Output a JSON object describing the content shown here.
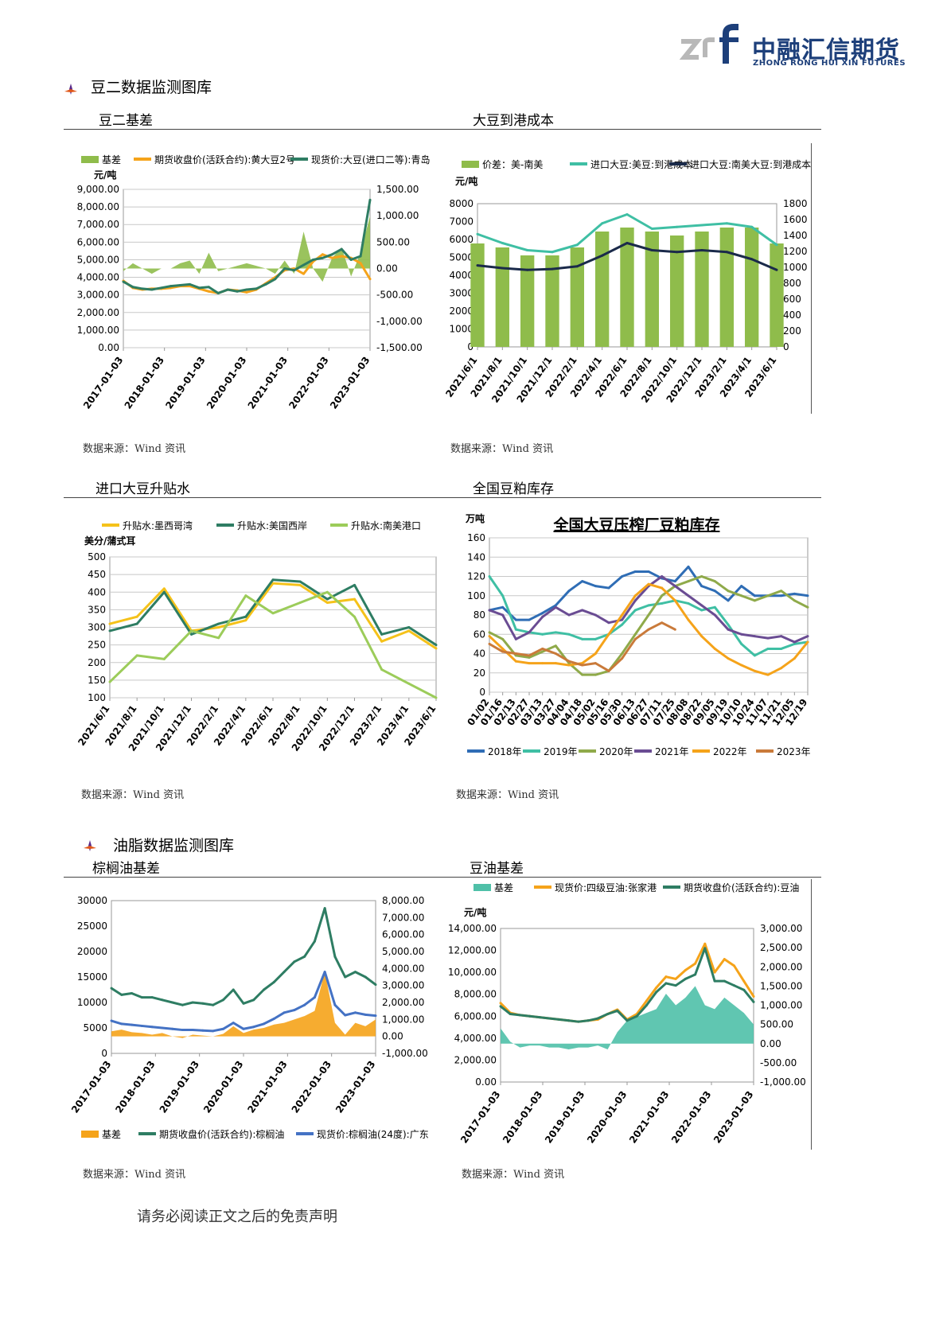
{
  "brand": {
    "name_cn": "中融汇信期货",
    "name_en": "ZHONG RONG HUI XIN FUTURES",
    "logo_mark": "zrf"
  },
  "sections": {
    "soy2": "豆二数据监测图库",
    "oil": "油脂数据监测图库"
  },
  "footer": "请务必阅读正文之后的免责声明",
  "chart_data": [
    {
      "id": "c1",
      "type": "line",
      "title": "豆二基差",
      "source": "数据来源：Wind 资讯",
      "ylabel_left": "元/吨",
      "legend": [
        "基差",
        "期货收盘价(活跃合约):黄大豆2号",
        "现货价:大豆(进口二等):青岛"
      ],
      "colors": [
        "#8fbc4b",
        "#f5a31a",
        "#2e7d63"
      ],
      "ylim_left": [
        0,
        9000
      ],
      "ylim_right": [
        -1500,
        1500
      ],
      "yticks_left": [
        "9,000.00",
        "8,000.00",
        "7,000.00",
        "6,000.00",
        "5,000.00",
        "4,000.00",
        "3,000.00",
        "2,000.00",
        "1,000.00",
        "0.00"
      ],
      "yticks_right": [
        "1,500.00",
        "1,000.00",
        "500.00",
        "0.00",
        "-500.00",
        "-1,000.00",
        "-1,500.00"
      ],
      "xticks": [
        "2017-01-03",
        "2018-01-03",
        "2019-01-03",
        "2020-01-03",
        "2021-01-03",
        "2022-01-03",
        "2023-01-03"
      ],
      "x": [
        "2017-01",
        "2017-04",
        "2017-07",
        "2017-10",
        "2018-01",
        "2018-04",
        "2018-07",
        "2018-10",
        "2019-01",
        "2019-04",
        "2019-07",
        "2019-10",
        "2020-01",
        "2020-04",
        "2020-07",
        "2020-10",
        "2021-01",
        "2021-04",
        "2021-07",
        "2021-10",
        "2022-01",
        "2022-04",
        "2022-07",
        "2022-10",
        "2023-01",
        "2023-04",
        "2023-06"
      ],
      "series": [
        {
          "name": "基差",
          "axis": "right",
          "values": [
            -50,
            100,
            0,
            -100,
            0,
            0,
            100,
            150,
            -100,
            300,
            -50,
            0,
            50,
            100,
            50,
            0,
            -100,
            150,
            -100,
            700,
            0,
            -250,
            200,
            400,
            -150,
            300,
            1000
          ]
        },
        {
          "name": "期货收盘价(活跃合约):黄大豆2号",
          "axis": "left",
          "values": [
            3800,
            3400,
            3300,
            3350,
            3350,
            3400,
            3500,
            3500,
            3350,
            3200,
            3100,
            3300,
            3250,
            3150,
            3300,
            3650,
            4000,
            4400,
            4500,
            4200,
            4900,
            5300,
            5100,
            5200,
            5100,
            4800,
            3900
          ]
        },
        {
          "name": "现货价:大豆(进口二等):青岛",
          "axis": "left",
          "values": [
            3750,
            3450,
            3350,
            3300,
            3400,
            3500,
            3550,
            3600,
            3400,
            3450,
            3100,
            3300,
            3200,
            3300,
            3350,
            3600,
            3900,
            4500,
            4400,
            4700,
            5000,
            5100,
            5300,
            5600,
            5000,
            5200,
            8400
          ]
        }
      ]
    },
    {
      "id": "c2",
      "type": "bar",
      "title": "大豆到港成本",
      "source": "数据来源：Wind 资讯",
      "ylabel_left": "元/吨",
      "legend": [
        "价差：美-南美",
        "进口大豆:美豆:到港成本",
        "进口大豆:南美大豆:到港成本"
      ],
      "colors": [
        "#8fbc4b",
        "#3fbfa4",
        "#1a2a4a"
      ],
      "ylim_left": [
        0,
        8000
      ],
      "ylim_right": [
        0,
        1800
      ],
      "yticks_left": [
        "8000",
        "7000",
        "6000",
        "5000",
        "4000",
        "3000",
        "2000",
        "1000",
        "0"
      ],
      "yticks_right": [
        "1800",
        "1600",
        "1400",
        "1200",
        "1000",
        "800",
        "600",
        "400",
        "200",
        "0"
      ],
      "xticks": [
        "2021/6/1",
        "2021/8/1",
        "2021/10/1",
        "2021/12/1",
        "2022/2/1",
        "2022/4/1",
        "2022/6/1",
        "2022/8/1",
        "2022/10/1",
        "2022/12/1",
        "2023/2/1",
        "2023/4/1",
        "2023/6/1"
      ],
      "x": [
        "2021/6",
        "2021/8",
        "2021/10",
        "2021/12",
        "2022/2",
        "2022/4",
        "2022/6",
        "2022/8",
        "2022/10",
        "2022/12",
        "2023/2",
        "2023/4",
        "2023/6"
      ],
      "series": [
        {
          "name": "价差：美-南美",
          "axis": "right",
          "values": [
            1300,
            1250,
            1150,
            1150,
            1250,
            1450,
            1500,
            1450,
            1400,
            1450,
            1500,
            1500,
            1300
          ]
        },
        {
          "name": "进口大豆:美豆:到港成本",
          "axis": "left",
          "values": [
            6300,
            5800,
            5400,
            5300,
            5700,
            6900,
            7400,
            6600,
            6700,
            6800,
            6900,
            6700,
            5700
          ]
        },
        {
          "name": "进口大豆:南美大豆:到港成本",
          "axis": "left",
          "values": [
            4550,
            4400,
            4300,
            4350,
            4500,
            5100,
            5800,
            5400,
            5300,
            5400,
            5300,
            4900,
            4300
          ]
        }
      ]
    },
    {
      "id": "c3",
      "type": "line",
      "title": "进口大豆升贴水",
      "source": "数据来源：Wind 资讯",
      "ylabel_left": "美分/蒲式耳",
      "legend": [
        "升贴水:墨西哥湾",
        "升贴水:美国西岸",
        "升贴水:南美港口"
      ],
      "colors": [
        "#f5c21a",
        "#2e7d63",
        "#9ccc5a"
      ],
      "ylim_left": [
        100,
        500
      ],
      "yticks_left": [
        "500",
        "450",
        "400",
        "350",
        "300",
        "250",
        "200",
        "150",
        "100"
      ],
      "xticks": [
        "2021/6/1",
        "2021/8/1",
        "2021/10/1",
        "2021/12/1",
        "2022/2/1",
        "2022/4/1",
        "2022/6/1",
        "2022/8/1",
        "2022/10/1",
        "2022/12/1",
        "2023/2/1",
        "2023/4/1",
        "2023/6/1"
      ],
      "x": [
        "2021/6",
        "2021/8",
        "2021/10",
        "2021/12",
        "2022/2",
        "2022/4",
        "2022/6",
        "2022/8",
        "2022/10",
        "2022/12",
        "2023/2",
        "2023/4",
        "2023/6"
      ],
      "series": [
        {
          "name": "升贴水:墨西哥湾",
          "values": [
            310,
            330,
            410,
            290,
            300,
            320,
            425,
            420,
            370,
            380,
            260,
            290,
            240
          ]
        },
        {
          "name": "升贴水:美国西岸",
          "values": [
            290,
            310,
            400,
            280,
            310,
            330,
            435,
            430,
            380,
            420,
            280,
            300,
            250
          ]
        },
        {
          "name": "升贴水:南美港口",
          "values": [
            145,
            220,
            210,
            290,
            270,
            390,
            340,
            370,
            400,
            330,
            180,
            140,
            100
          ]
        }
      ]
    },
    {
      "id": "c4",
      "type": "line",
      "title": "全国豆粕库存",
      "inner_title": "全国大豆压榨厂豆粕库存",
      "source": "数据来源：Wind 资讯",
      "ylabel_left": "万吨",
      "legend": [
        "2018年",
        "2019年",
        "2020年",
        "2021年",
        "2022年",
        "2023年"
      ],
      "colors": [
        "#2f6db5",
        "#3fbfa4",
        "#8faa4a",
        "#6a4c93",
        "#f5a31a",
        "#c97a3a"
      ],
      "ylim_left": [
        0,
        160
      ],
      "yticks_left": [
        "160",
        "140",
        "120",
        "100",
        "80",
        "60",
        "40",
        "20",
        "0"
      ],
      "xticks": [
        "01/02",
        "01/16",
        "02/13",
        "02/27",
        "03/13",
        "03/27",
        "04/04",
        "04/18",
        "05/02",
        "05/16",
        "05/30",
        "06/13",
        "06/27",
        "07/11",
        "07/25",
        "08/08",
        "08/22",
        "09/05",
        "09/19",
        "10/10",
        "10/24",
        "11/07",
        "11/21",
        "12/05",
        "12/19"
      ],
      "x": [
        "01/02",
        "01/16",
        "02/13",
        "02/27",
        "03/13",
        "03/27",
        "04/04",
        "04/18",
        "05/02",
        "05/16",
        "05/30",
        "06/13",
        "06/27",
        "07/11",
        "07/25",
        "08/08",
        "08/22",
        "09/05",
        "09/19",
        "10/10",
        "10/24",
        "11/07",
        "11/21",
        "12/05",
        "12/19"
      ],
      "series": [
        {
          "name": "2018年",
          "values": [
            85,
            88,
            75,
            75,
            82,
            90,
            105,
            115,
            110,
            108,
            120,
            125,
            125,
            118,
            115,
            130,
            110,
            105,
            95,
            110,
            100,
            100,
            100,
            102,
            100
          ]
        },
        {
          "name": "2019年",
          "values": [
            120,
            100,
            65,
            62,
            60,
            62,
            60,
            55,
            55,
            60,
            70,
            85,
            90,
            92,
            95,
            92,
            85,
            88,
            70,
            50,
            38,
            45,
            45,
            50,
            52
          ]
        },
        {
          "name": "2020年",
          "values": [
            62,
            55,
            38,
            36,
            42,
            48,
            30,
            18,
            18,
            22,
            40,
            60,
            80,
            100,
            110,
            115,
            120,
            115,
            105,
            100,
            95,
            100,
            105,
            95,
            88
          ]
        },
        {
          "name": "2021年",
          "values": [
            85,
            80,
            55,
            62,
            78,
            88,
            80,
            85,
            80,
            72,
            75,
            95,
            110,
            120,
            110,
            100,
            90,
            80,
            65,
            60,
            58,
            56,
            58,
            52,
            58
          ]
        },
        {
          "name": "2022年",
          "values": [
            58,
            45,
            32,
            30,
            30,
            30,
            28,
            30,
            40,
            60,
            80,
            100,
            112,
            108,
            95,
            75,
            58,
            45,
            35,
            28,
            22,
            18,
            25,
            35,
            52
          ]
        },
        {
          "name": "2023年",
          "values": [
            50,
            42,
            40,
            38,
            45,
            40,
            32,
            28,
            30,
            22,
            35,
            55,
            65,
            72,
            65,
            null,
            null,
            null,
            null,
            null,
            null,
            null,
            null,
            null,
            null
          ]
        }
      ]
    },
    {
      "id": "c5",
      "type": "line",
      "title": "棕榈油基差",
      "source": "数据来源：Wind 资讯",
      "legend": [
        "基差",
        "期货收盘价(活跃合约):棕榈油",
        "现货价:棕榈油(24度):广东"
      ],
      "colors": [
        "#f5a31a",
        "#2e7d63",
        "#4472c4"
      ],
      "ylim_left": [
        0,
        30000
      ],
      "ylim_right": [
        -1000,
        8000
      ],
      "yticks_left": [
        "30000",
        "25000",
        "20000",
        "15000",
        "10000",
        "5000",
        "0"
      ],
      "yticks_right": [
        "8,000.00",
        "7,000.00",
        "6,000.00",
        "5,000.00",
        "4,000.00",
        "3,000.00",
        "2,000.00",
        "1,000.00",
        "0.00",
        "-1,000.00"
      ],
      "xticks": [
        "2017-01-03",
        "2018-01-03",
        "2019-01-03",
        "2020-01-03",
        "2021-01-03",
        "2022-01-03",
        "2023-01-03"
      ],
      "x": [
        "2017-01",
        "2017-04",
        "2017-07",
        "2017-10",
        "2018-01",
        "2018-04",
        "2018-07",
        "2018-10",
        "2019-01",
        "2019-04",
        "2019-07",
        "2019-10",
        "2020-01",
        "2020-04",
        "2020-07",
        "2020-10",
        "2021-01",
        "2021-04",
        "2021-07",
        "2021-10",
        "2022-01",
        "2022-04",
        "2022-07",
        "2022-10",
        "2023-01",
        "2023-04",
        "2023-06"
      ],
      "series": [
        {
          "name": "基差",
          "axis": "right",
          "values": [
            300,
            400,
            250,
            200,
            100,
            200,
            0,
            -100,
            100,
            50,
            0,
            150,
            600,
            200,
            400,
            500,
            700,
            800,
            1000,
            1200,
            1500,
            3800,
            800,
            100,
            800,
            600,
            1000
          ]
        },
        {
          "name": "期货收盘价(活跃合约):棕榈油",
          "axis": "left",
          "values": [
            12800,
            11500,
            11800,
            11000,
            11000,
            10500,
            10000,
            9500,
            10000,
            9800,
            9500,
            10500,
            12500,
            9800,
            10500,
            12500,
            14000,
            16000,
            18000,
            19000,
            22000,
            28500,
            19000,
            15000,
            16000,
            15000,
            13500
          ]
        },
        {
          "name": "现货价:棕榈油(24度):广东",
          "axis": "left",
          "values": [
            6400,
            5800,
            5600,
            5400,
            5200,
            5000,
            4800,
            4600,
            4600,
            4500,
            4400,
            4800,
            6000,
            4800,
            5200,
            5800,
            6800,
            8000,
            8500,
            9500,
            11000,
            16000,
            9500,
            7500,
            8000,
            7600,
            7400
          ]
        }
      ]
    },
    {
      "id": "c6",
      "type": "area",
      "title": "豆油基差",
      "source": "数据来源：Wind 资讯",
      "ylabel_left": "元/吨",
      "legend": [
        "基差",
        "现货价:四级豆油:张家港",
        "期货收盘价(活跃合约):豆油"
      ],
      "colors": [
        "#4fc0a8",
        "#f5a31a",
        "#2e7d63"
      ],
      "ylim_left": [
        0,
        14000
      ],
      "ylim_right": [
        -1000,
        3000
      ],
      "yticks_left": [
        "14,000.00",
        "12,000.00",
        "10,000.00",
        "8,000.00",
        "6,000.00",
        "4,000.00",
        "2,000.00",
        "0.00"
      ],
      "yticks_right": [
        "3,000.00",
        "2,500.00",
        "2,000.00",
        "1,500.00",
        "1,000.00",
        "500.00",
        "0.00",
        "-500.00",
        "-1,000.00"
      ],
      "xticks": [
        "2017-01-03",
        "2018-01-03",
        "2019-01-03",
        "2020-01-03",
        "2021-01-03",
        "2022-01-03",
        "2023-01-03"
      ],
      "x": [
        "2017-01",
        "2017-04",
        "2017-07",
        "2017-10",
        "2018-01",
        "2018-04",
        "2018-07",
        "2018-10",
        "2019-01",
        "2019-04",
        "2019-07",
        "2019-10",
        "2020-01",
        "2020-04",
        "2020-07",
        "2020-10",
        "2021-01",
        "2021-04",
        "2021-07",
        "2021-10",
        "2022-01",
        "2022-04",
        "2022-07",
        "2022-10",
        "2023-01",
        "2023-04",
        "2023-06"
      ],
      "series": [
        {
          "name": "基差",
          "axis": "right",
          "values": [
            400,
            50,
            -100,
            -50,
            -50,
            -100,
            -100,
            -150,
            -100,
            -100,
            -50,
            -150,
            300,
            600,
            700,
            800,
            900,
            1300,
            1000,
            1200,
            1500,
            1000,
            900,
            1200,
            1000,
            800,
            500
          ]
        },
        {
          "name": "现货价:四级豆油:张家港",
          "axis": "left",
          "values": [
            7200,
            6300,
            6100,
            6000,
            5900,
            5800,
            5700,
            5600,
            5500,
            5600,
            5700,
            6200,
            6600,
            5700,
            6200,
            7400,
            8600,
            9600,
            9400,
            10200,
            10800,
            12600,
            10000,
            11200,
            10600,
            9200,
            7800
          ]
        },
        {
          "name": "期货收盘价(活跃合约):豆油",
          "axis": "left",
          "values": [
            6900,
            6200,
            6100,
            6000,
            5900,
            5800,
            5700,
            5600,
            5500,
            5600,
            5800,
            6200,
            6500,
            5600,
            6000,
            7000,
            8200,
            9000,
            8800,
            9400,
            9800,
            12200,
            9200,
            9200,
            8800,
            8400,
            7300
          ]
        }
      ]
    }
  ]
}
